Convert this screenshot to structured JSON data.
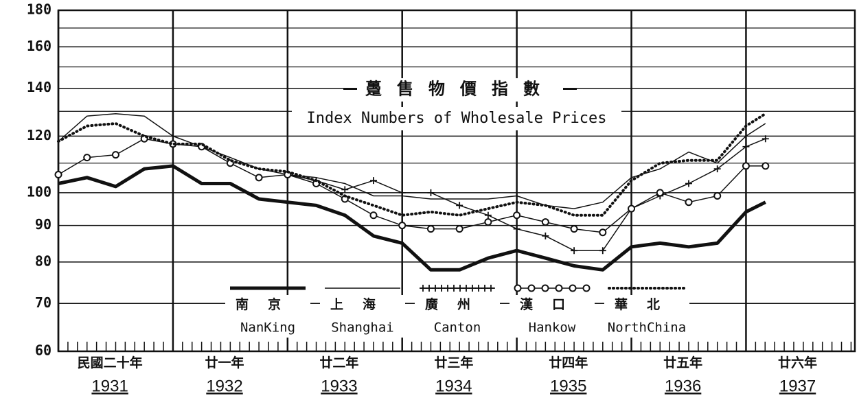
{
  "chart_data": {
    "type": "line",
    "title": "躉售物價指數",
    "subtitle": "Index Numbers of Wholesale Prices",
    "log_scale": true,
    "grid": true,
    "color": "#111111",
    "x": [
      1931,
      1931.25,
      1931.5,
      1931.75,
      1932,
      1932.25,
      1932.5,
      1932.75,
      1933,
      1933.25,
      1933.5,
      1933.75,
      1934,
      1934.25,
      1934.5,
      1934.75,
      1935,
      1935.25,
      1935.5,
      1935.75,
      1936,
      1936.25,
      1936.5,
      1936.75,
      1937,
      1937.17
    ],
    "xlim": [
      1931,
      1937.95
    ],
    "xticks": [
      1931,
      1932,
      1933,
      1934,
      1935,
      1936,
      1937
    ],
    "xtick_labels_zh": [
      "民國二十年",
      "廿一年",
      "廿二年",
      "廿三年",
      "廿四年",
      "廿五年",
      "廿六年"
    ],
    "ylim": [
      60,
      180
    ],
    "yticks": [
      60,
      70,
      80,
      90,
      100,
      120,
      140,
      160,
      180
    ],
    "minor_yticks": [
      110,
      130,
      150,
      170
    ],
    "series": [
      {
        "name": "NanKing",
        "name_zh": "南京",
        "style": "thick",
        "values": [
          103,
          105,
          102,
          108,
          109,
          103,
          103,
          98,
          97,
          96,
          93,
          87,
          85,
          78,
          78,
          81,
          83,
          81,
          79,
          78,
          84,
          85,
          84,
          85,
          94,
          97
        ]
      },
      {
        "name": "Shanghai",
        "name_zh": "上海",
        "style": "thin",
        "values": [
          118,
          128,
          129,
          128,
          120,
          116,
          112,
          108,
          106,
          105,
          103,
          99,
          99,
          98,
          98,
          98,
          99,
          96,
          95,
          97,
          105,
          108,
          114,
          110,
          120,
          125
        ]
      },
      {
        "name": "Canton",
        "name_zh": "廣州",
        "style": "plus",
        "values": [
          null,
          null,
          null,
          null,
          null,
          null,
          null,
          null,
          106,
          104,
          101,
          104,
          100,
          100,
          96,
          93,
          89,
          87,
          83,
          83,
          95,
          99,
          103,
          108,
          116,
          119
        ]
      },
      {
        "name": "Hankow",
        "name_zh": "漢口",
        "style": "circle",
        "values": [
          106,
          112,
          113,
          119,
          117,
          116,
          110,
          105,
          106,
          103,
          98,
          93,
          90,
          89,
          89,
          91,
          93,
          91,
          89,
          88,
          95,
          100,
          97,
          99,
          109,
          109
        ]
      },
      {
        "name": "NorthChina",
        "name_zh": "華北",
        "style": "dot",
        "values": [
          118,
          124,
          125,
          120,
          117,
          117,
          111,
          108,
          107,
          104,
          99,
          96,
          93,
          94,
          93,
          95,
          97,
          96,
          93,
          93,
          104,
          110,
          111,
          111,
          124,
          129
        ]
      }
    ]
  }
}
